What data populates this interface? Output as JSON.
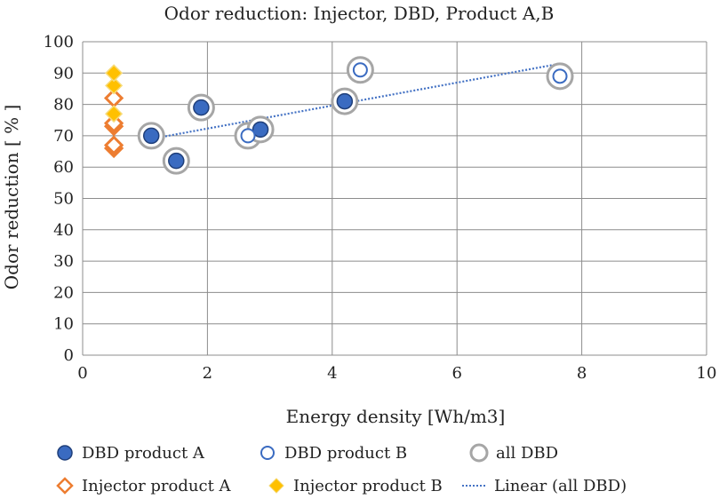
{
  "chart_data": {
    "type": "scatter",
    "title": "Odor reduction: Injector, DBD, Product A,B",
    "xlabel": "Energy density [Wh/m3]",
    "ylabel": "Odor reduction [ % ]",
    "xlim": [
      0,
      10
    ],
    "ylim": [
      0,
      100
    ],
    "xticks": [
      0,
      2,
      4,
      6,
      8,
      10
    ],
    "yticks": [
      0,
      10,
      20,
      30,
      40,
      50,
      60,
      70,
      80,
      90,
      100
    ],
    "grid": true,
    "legend_position": "bottom",
    "series": [
      {
        "name": "DBD product A",
        "marker": "filled-circle",
        "color": "#3A6BC1",
        "x": [
          1.1,
          1.5,
          1.9,
          2.85,
          4.2
        ],
        "y": [
          70,
          62,
          79,
          72,
          81
        ]
      },
      {
        "name": "DBD product B",
        "marker": "open-circle",
        "color": "#3A6BC1",
        "x": [
          2.65,
          4.45,
          7.65
        ],
        "y": [
          70,
          91,
          89
        ]
      },
      {
        "name": "all DBD",
        "marker": "open-circle-large",
        "color": "#A6A6A6",
        "x": [
          1.1,
          1.5,
          1.9,
          2.65,
          2.85,
          4.2,
          4.45,
          7.65
        ],
        "y": [
          70,
          62,
          79,
          70,
          72,
          81,
          91,
          89
        ]
      },
      {
        "name": "Injector product A",
        "marker": "open-diamond",
        "color": "#ED7D31",
        "x": [
          0.5,
          0.5,
          0.5,
          0.5,
          0.5
        ],
        "y": [
          66,
          67,
          73,
          74,
          82
        ]
      },
      {
        "name": "Injector product B",
        "marker": "filled-diamond",
        "color": "#FFC000",
        "x": [
          0.5,
          0.5,
          0.5
        ],
        "y": [
          77,
          86,
          90
        ]
      },
      {
        "name": "Linear (all DBD)",
        "marker": "dotted-line",
        "color": "#4472C4",
        "x": [
          1.1,
          7.65
        ],
        "y": [
          69,
          93
        ]
      }
    ]
  }
}
